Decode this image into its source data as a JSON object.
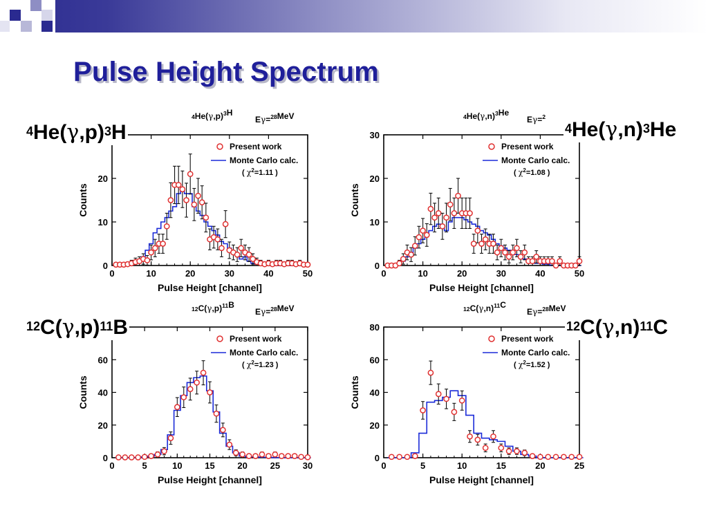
{
  "slide": {
    "title": "Pulse Height Spectrum"
  },
  "reactions": [
    {
      "target_mass": "4",
      "target": "He",
      "projectile": "γ",
      "ejectile": "p",
      "residual_mass": "3",
      "residual": "H"
    },
    {
      "target_mass": "4",
      "target": "He",
      "projectile": "γ",
      "ejectile": "n",
      "residual_mass": "3",
      "residual": "He"
    },
    {
      "target_mass": "12",
      "target": "C",
      "projectile": "γ",
      "ejectile": "p",
      "residual_mass": "11",
      "residual": "B"
    },
    {
      "target_mass": "12",
      "target": "C",
      "projectile": "γ",
      "ejectile": "n",
      "residual_mass": "11",
      "residual": "C"
    }
  ],
  "colors": {
    "title": "#1f1f9a",
    "data_points": "#e03030",
    "monte_carlo": "#1a2ad8",
    "corner_blue": "#2a2a90"
  },
  "chart_data": [
    {
      "type": "scatter",
      "header": {
        "reaction": "4He(γ,p)3H",
        "energy": "Eγ=28MeV"
      },
      "xlabel": "Pulse Height  [channel]",
      "ylabel": "Counts",
      "xlim": [
        0,
        50
      ],
      "ylim": [
        0,
        30
      ],
      "xticks": [
        0,
        10,
        20,
        30,
        40,
        50
      ],
      "yticks": [
        10,
        20
      ],
      "legend": {
        "points": "Present work",
        "line": "Monte Carlo calc.",
        "chi2": "( χ2=1.11 )"
      },
      "series": [
        {
          "name": "Present work",
          "x": [
            1,
            2,
            3,
            4,
            5,
            6,
            7,
            8,
            9,
            10,
            11,
            12,
            13,
            14,
            15,
            16,
            17,
            18,
            19,
            20,
            21,
            22,
            23,
            24,
            25,
            26,
            27,
            28,
            29,
            30,
            31,
            32,
            33,
            34,
            35,
            36,
            37,
            38,
            39,
            40,
            41,
            42,
            43,
            44,
            45,
            46,
            47,
            48,
            49,
            50
          ],
          "y": [
            0.2,
            0.2,
            0.2,
            0.3,
            0.5,
            0.8,
            1,
            1.5,
            1.2,
            3,
            4,
            5,
            5,
            9,
            15,
            18.5,
            18.5,
            17.5,
            15,
            21,
            14,
            16,
            14.5,
            11,
            6,
            6.5,
            6,
            4,
            9.5,
            3.5,
            3,
            2.5,
            4,
            3,
            2.5,
            1.5,
            0.8,
            0.5,
            0.3,
            0.5,
            0.3,
            0.5,
            0.5,
            0.3,
            0.5,
            0.5,
            0.3,
            0.5,
            0.2,
            0.2
          ],
          "err": [
            0.4,
            0.4,
            0.4,
            0.5,
            0.7,
            0.9,
            1,
            1.2,
            1.1,
            1.7,
            2,
            2.2,
            2.2,
            3,
            4,
            4.3,
            4.3,
            4.2,
            3.9,
            4.6,
            3.7,
            4,
            3.8,
            3.3,
            2.4,
            2.5,
            2.4,
            2,
            3.1,
            1.9,
            1.7,
            1.6,
            2,
            1.7,
            1.6,
            1.2,
            0.9,
            0.7,
            0.5,
            0.7,
            0.5,
            0.7,
            0.7,
            0.5,
            0.7,
            0.7,
            0.5,
            0.7,
            0.4,
            0.4
          ]
        },
        {
          "name": "Monte Carlo calc.",
          "x": [
            1,
            2,
            3,
            4,
            5,
            6,
            7,
            8,
            9,
            10,
            11,
            12,
            13,
            14,
            15,
            16,
            17,
            18,
            19,
            20,
            21,
            22,
            23,
            24,
            25,
            26,
            27,
            28,
            29,
            30,
            31,
            32,
            33,
            34,
            35,
            36,
            37,
            38,
            39,
            40,
            41,
            42,
            43,
            44,
            45,
            46,
            47,
            48,
            49,
            50
          ],
          "y": [
            0,
            0,
            0,
            0.3,
            0.8,
            1,
            1.2,
            2,
            3.5,
            5,
            7.5,
            8.5,
            10,
            11,
            12.5,
            13.5,
            16.5,
            17,
            16.5,
            16.5,
            13.5,
            12.5,
            11.5,
            10,
            9,
            8,
            7,
            5.5,
            5,
            4,
            3,
            2.5,
            1.5,
            2,
            1,
            0.5,
            0.3,
            0.3,
            0.3,
            0.3,
            0,
            0,
            0,
            0,
            0,
            0,
            0,
            0,
            0,
            0
          ]
        }
      ]
    },
    {
      "type": "scatter",
      "header": {
        "reaction": "4He(γ,n)3He",
        "energy": "Eγ=2"
      },
      "xlabel": "Pulse Height  [channel]",
      "ylabel": "Counts",
      "xlim": [
        0,
        50
      ],
      "ylim": [
        0,
        30
      ],
      "xticks": [
        0,
        10,
        20,
        30,
        40,
        50
      ],
      "yticks": [
        10,
        20,
        30
      ],
      "legend": {
        "points": "Present work",
        "line": "Monte Carlo calc.",
        "chi2": "( χ2=1.08 )"
      },
      "series": [
        {
          "name": "Present work",
          "x": [
            1,
            2,
            3,
            4,
            5,
            6,
            7,
            8,
            9,
            10,
            11,
            12,
            13,
            14,
            15,
            16,
            17,
            18,
            19,
            20,
            21,
            22,
            23,
            24,
            25,
            26,
            27,
            28,
            29,
            30,
            31,
            32,
            33,
            34,
            35,
            36,
            37,
            38,
            39,
            40,
            41,
            42,
            43,
            44,
            45,
            46,
            47,
            48,
            49,
            50
          ],
          "y": [
            0,
            0,
            0,
            0.5,
            1.5,
            3,
            2.5,
            4.5,
            6.5,
            8,
            7,
            13,
            11,
            12,
            9,
            11,
            14,
            12,
            16,
            12,
            12,
            12,
            5,
            8,
            5,
            6,
            5,
            5,
            3,
            4,
            3,
            2,
            3,
            4,
            2,
            3,
            1,
            1,
            2,
            1,
            1,
            1,
            1,
            0,
            1,
            0,
            0,
            0,
            0,
            1
          ],
          "err": [
            0.4,
            0.4,
            0.4,
            0.7,
            1.2,
            1.7,
            1.6,
            2.1,
            2.5,
            2.8,
            2.6,
            3.6,
            3.3,
            3.5,
            3,
            3.3,
            3.7,
            3.5,
            4,
            3.5,
            3.5,
            3.5,
            2.2,
            2.8,
            2.2,
            2.4,
            2.2,
            2.2,
            1.7,
            2,
            1.7,
            1.4,
            1.7,
            2,
            1.4,
            1.7,
            1,
            1,
            1.4,
            1,
            1,
            1,
            1,
            0.4,
            1,
            0.4,
            0.4,
            0.4,
            0.4,
            1
          ]
        },
        {
          "name": "Monte Carlo calc.",
          "x": [
            1,
            2,
            3,
            4,
            5,
            6,
            7,
            8,
            9,
            10,
            11,
            12,
            13,
            14,
            15,
            16,
            17,
            18,
            19,
            20,
            21,
            22,
            23,
            24,
            25,
            26,
            27,
            28,
            29,
            30,
            31,
            32,
            33,
            34,
            35,
            36,
            37,
            38,
            39,
            40,
            41,
            42,
            43,
            44,
            45,
            46,
            47,
            48,
            49,
            50
          ],
          "y": [
            0,
            0,
            0,
            0.3,
            1,
            2,
            3,
            4,
            5,
            6,
            7,
            8,
            9,
            9.5,
            9,
            8,
            10,
            11,
            11,
            11,
            10.5,
            10,
            9.5,
            9,
            8,
            7.5,
            7,
            6,
            5,
            4.5,
            4,
            3.5,
            3,
            2.5,
            2,
            1.5,
            1,
            1,
            0.5,
            0.5,
            0.3,
            0.3,
            0,
            0,
            0,
            0,
            0,
            0,
            0,
            0
          ]
        }
      ]
    },
    {
      "type": "scatter",
      "header": {
        "reaction": "12C(γ,p)11B",
        "energy": "Eγ=28MeV"
      },
      "xlabel": "Pulse Height  [channel]",
      "ylabel": "Counts",
      "xlim": [
        0,
        30
      ],
      "ylim": [
        0,
        80
      ],
      "xticks": [
        0,
        5,
        10,
        15,
        20,
        25,
        30
      ],
      "yticks": [
        20,
        40,
        60
      ],
      "legend": {
        "points": "Present work",
        "line": "Monte Carlo calc.",
        "chi2": "( χ2=1.23 )"
      },
      "series": [
        {
          "name": "Present work",
          "x": [
            1,
            2,
            3,
            4,
            5,
            6,
            7,
            8,
            9,
            10,
            11,
            12,
            13,
            14,
            15,
            16,
            17,
            18,
            19,
            20,
            21,
            22,
            23,
            24,
            25,
            26,
            27,
            28,
            29,
            30
          ],
          "y": [
            0.2,
            0.2,
            0.2,
            0.2,
            0.5,
            1,
            2,
            4,
            12,
            31,
            37,
            42,
            46,
            52,
            40,
            27,
            17,
            8,
            3,
            2,
            1,
            1,
            2,
            1,
            2,
            1,
            1,
            1,
            0.5,
            0.3
          ],
          "err": [
            0.5,
            0.5,
            0.5,
            0.5,
            0.8,
            1.2,
            1.6,
            2.2,
            3.8,
            5.8,
            6.3,
            6.7,
            7,
            7.4,
            6.5,
            5.3,
            4.2,
            3,
            1.8,
            1.5,
            1.1,
            1.1,
            1.5,
            1.1,
            1.5,
            1.1,
            1.1,
            1.1,
            0.8,
            0.6
          ]
        },
        {
          "name": "Monte Carlo calc.",
          "x": [
            1,
            2,
            3,
            4,
            5,
            6,
            7,
            8,
            9,
            10,
            11,
            12,
            13,
            14,
            15,
            16,
            17,
            18,
            19,
            20,
            21,
            22,
            23,
            24,
            25,
            26,
            27,
            28,
            29,
            30
          ],
          "y": [
            0,
            0,
            0,
            0,
            0.5,
            1,
            2,
            5,
            14,
            29,
            38,
            46,
            49,
            50,
            41,
            28,
            15,
            7,
            3,
            1,
            0.5,
            0.5,
            0.3,
            0.3,
            0,
            0,
            0,
            0,
            0,
            0
          ]
        }
      ]
    },
    {
      "type": "scatter",
      "header": {
        "reaction": "12C(γ,n)11C",
        "energy": "Eγ=28MeV"
      },
      "xlabel": "Pulse Height  [channel]",
      "ylabel": "Counts",
      "xlim": [
        0,
        25
      ],
      "ylim": [
        0,
        80
      ],
      "xticks": [
        0,
        5,
        10,
        15,
        20,
        25
      ],
      "yticks": [
        20,
        40,
        60,
        80
      ],
      "legend": {
        "points": "Present work",
        "line": "Monte Carlo calc.",
        "chi2": "( χ2=1.52 )"
      },
      "series": [
        {
          "name": "Present work",
          "x": [
            1,
            2,
            3,
            4,
            5,
            6,
            7,
            8,
            9,
            10,
            11,
            12,
            13,
            14,
            15,
            16,
            17,
            18,
            19,
            20,
            21,
            22,
            23,
            24,
            25
          ],
          "y": [
            0.5,
            0.5,
            0.5,
            1,
            29,
            52,
            39,
            36,
            28,
            35,
            13,
            11,
            6,
            13,
            6,
            4,
            4,
            3,
            1,
            0.5,
            0.5,
            0.5,
            0.5,
            0.5,
            0.5
          ],
          "err": [
            0.7,
            0.7,
            0.7,
            1,
            5.4,
            7.2,
            6.2,
            6,
            5.3,
            5.9,
            3.6,
            3.3,
            2.4,
            3.6,
            2.4,
            2,
            2,
            1.7,
            1,
            0.7,
            0.7,
            0.7,
            0.7,
            0.7,
            0.7
          ]
        },
        {
          "name": "Monte Carlo calc.",
          "x": [
            1,
            2,
            3,
            4,
            5,
            6,
            7,
            8,
            9,
            10,
            11,
            12,
            13,
            14,
            15,
            16,
            17,
            18,
            19,
            20,
            21,
            22,
            23,
            24,
            25
          ],
          "y": [
            0,
            0,
            0,
            3,
            15,
            34,
            35,
            37,
            41,
            38,
            26,
            15,
            12,
            11,
            10,
            7,
            4,
            2,
            1,
            0,
            0,
            0,
            0,
            0,
            0
          ]
        }
      ]
    }
  ]
}
